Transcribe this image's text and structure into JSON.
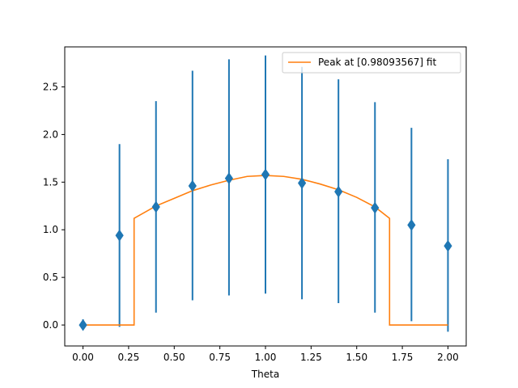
{
  "chart_data": {
    "type": "scatter",
    "xlabel": "Theta",
    "ylabel": "",
    "xlim": [
      -0.1,
      2.1
    ],
    "ylim": [
      -0.22,
      2.92
    ],
    "xticks": [
      0.0,
      0.25,
      0.5,
      0.75,
      1.0,
      1.25,
      1.5,
      1.75,
      2.0
    ],
    "xtick_labels": [
      "0.00",
      "0.25",
      "0.50",
      "0.75",
      "1.00",
      "1.25",
      "1.50",
      "1.75",
      "2.00"
    ],
    "yticks": [
      0.0,
      0.5,
      1.0,
      1.5,
      2.0,
      2.5
    ],
    "ytick_labels": [
      "0.0",
      "0.5",
      "1.0",
      "1.5",
      "2.0",
      "2.5"
    ],
    "grid": false,
    "legend_position": "top-right",
    "series": [
      {
        "kind": "errorbar",
        "marker": "diamond",
        "color": "#1f77b4",
        "x": [
          0.0,
          0.2,
          0.4,
          0.6,
          0.8,
          1.0,
          1.2,
          1.4,
          1.6,
          1.8,
          2.0
        ],
        "y": [
          0.0,
          0.94,
          1.24,
          1.46,
          1.54,
          1.58,
          1.49,
          1.4,
          1.23,
          1.05,
          0.83
        ],
        "err_low": [
          -0.04,
          -0.02,
          0.13,
          0.26,
          0.31,
          0.33,
          0.27,
          0.23,
          0.13,
          0.04,
          -0.07
        ],
        "err_high": [
          0.06,
          1.9,
          2.35,
          2.67,
          2.79,
          2.83,
          2.71,
          2.58,
          2.34,
          2.07,
          1.74
        ]
      },
      {
        "kind": "line",
        "name": "Peak at [0.98093567] fit",
        "color": "#ff7f0e",
        "x": [
          0.0,
          0.28,
          0.28,
          0.4,
          0.5,
          0.6,
          0.7,
          0.8,
          0.9,
          1.0,
          1.1,
          1.2,
          1.3,
          1.4,
          1.5,
          1.6,
          1.68,
          1.68,
          2.0
        ],
        "y": [
          0.0,
          0.0,
          1.12,
          1.25,
          1.33,
          1.41,
          1.47,
          1.52,
          1.56,
          1.57,
          1.56,
          1.53,
          1.48,
          1.42,
          1.34,
          1.24,
          1.12,
          0.0,
          0.0
        ]
      }
    ]
  }
}
